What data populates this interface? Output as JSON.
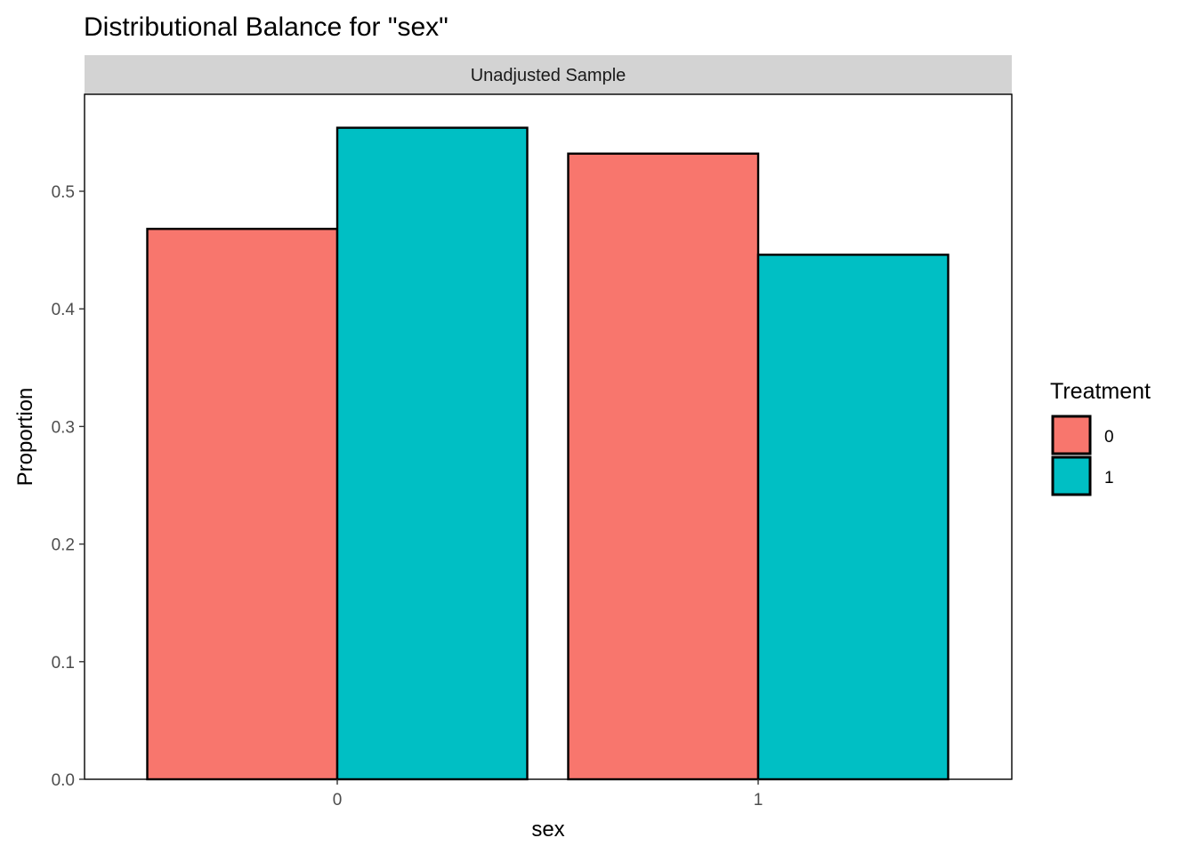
{
  "chart_data": {
    "type": "bar",
    "title": "Distributional Balance for \"sex\"",
    "facet": "Unadjusted Sample",
    "xlabel": "sex",
    "ylabel": "Proportion",
    "categories": [
      "0",
      "1"
    ],
    "series": [
      {
        "name": "0",
        "color": "#F8766D",
        "values": [
          0.468,
          0.532
        ]
      },
      {
        "name": "1",
        "color": "#00BFC4",
        "values": [
          0.554,
          0.446
        ]
      }
    ],
    "ylim": [
      0,
      0.58
    ],
    "yticks": [
      0.0,
      0.1,
      0.2,
      0.3,
      0.4,
      0.5
    ],
    "ytick_labels": [
      "0.0",
      "0.1",
      "0.2",
      "0.3",
      "0.4",
      "0.5"
    ],
    "grid": false,
    "legend": {
      "title": "Treatment",
      "position": "right",
      "labels": [
        "0",
        "1"
      ]
    }
  }
}
